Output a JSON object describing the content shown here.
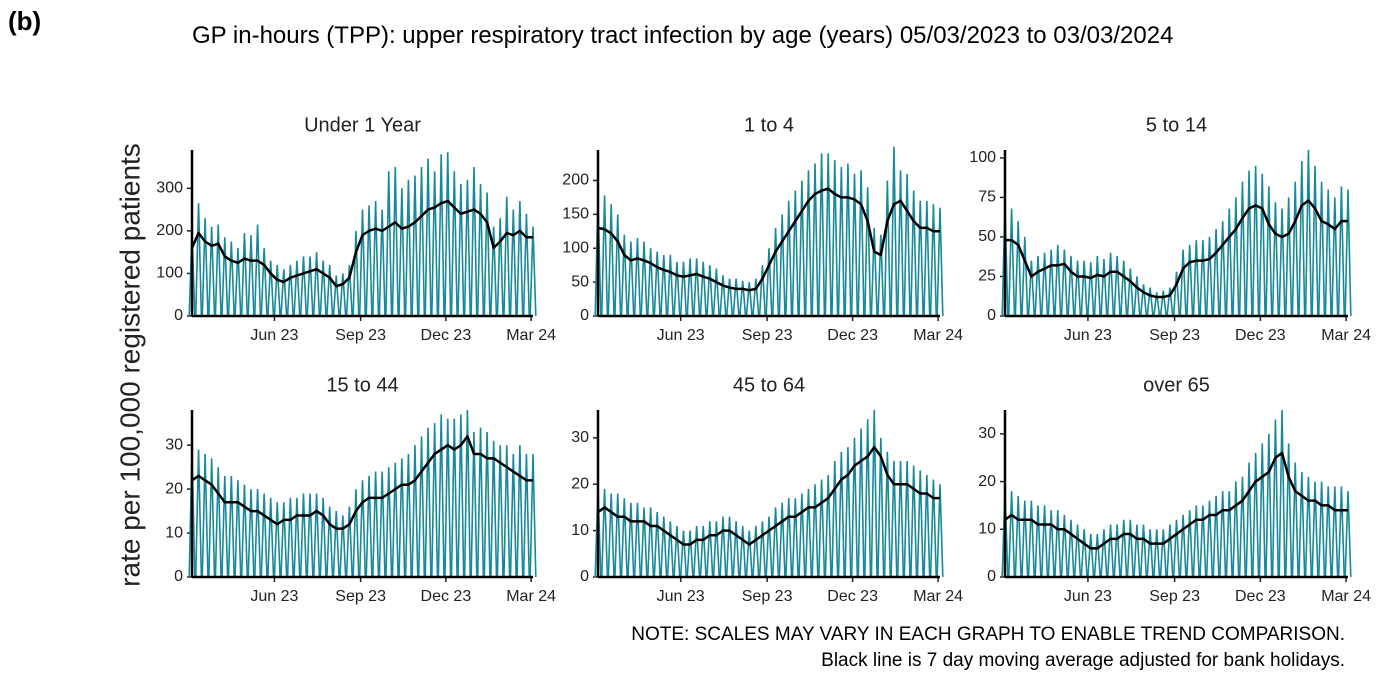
{
  "panel_label": "(b)",
  "notes": [
    "NOTE: SCALES MAY VARY IN EACH GRAPH TO ENABLE TREND COMPARISON.",
    "Black line is 7 day moving average adjusted for bank holidays."
  ],
  "chart_data": {
    "type": "line",
    "title": "GP in-hours (TPP): upper respiratory tract infection by age (years) 05/03/2023 to 03/03/2024",
    "ylabel": "rate per 100,000 registered patients",
    "xlim": [
      "2023-03-05",
      "2024-03-03"
    ],
    "xticks": [
      {
        "value": "2023-06-01",
        "label": "Jun 23"
      },
      {
        "value": "2023-09-01",
        "label": "Sep 23"
      },
      {
        "value": "2023-12-01",
        "label": "Dec 23"
      },
      {
        "value": "2024-03-01",
        "label": "Mar 24"
      }
    ],
    "x": [
      "2023-03-05",
      "2023-03-12",
      "2023-03-19",
      "2023-03-26",
      "2023-04-02",
      "2023-04-09",
      "2023-04-16",
      "2023-04-23",
      "2023-04-30",
      "2023-05-07",
      "2023-05-14",
      "2023-05-21",
      "2023-05-28",
      "2023-06-04",
      "2023-06-11",
      "2023-06-18",
      "2023-06-25",
      "2023-07-02",
      "2023-07-09",
      "2023-07-16",
      "2023-07-23",
      "2023-07-30",
      "2023-08-06",
      "2023-08-13",
      "2023-08-20",
      "2023-08-27",
      "2023-09-03",
      "2023-09-10",
      "2023-09-17",
      "2023-09-24",
      "2023-10-01",
      "2023-10-08",
      "2023-10-15",
      "2023-10-22",
      "2023-10-29",
      "2023-11-05",
      "2023-11-12",
      "2023-11-19",
      "2023-11-26",
      "2023-12-03",
      "2023-12-10",
      "2023-12-17",
      "2023-12-24",
      "2023-12-31",
      "2024-01-07",
      "2024-01-14",
      "2024-01-21",
      "2024-01-28",
      "2024-02-04",
      "2024-02-11",
      "2024-02-18",
      "2024-02-25",
      "2024-03-03"
    ],
    "panels": [
      {
        "title": "Under 1 Year",
        "ylim": [
          0,
          390
        ],
        "yticks": [
          0,
          100,
          200,
          300
        ],
        "series": [
          {
            "color": "#17899a",
            "values": [
              200,
              265,
              230,
              210,
              215,
              185,
              175,
              160,
              195,
              190,
              215,
              160,
              130,
              120,
              110,
              120,
              130,
              140,
              140,
              150,
              130,
              120,
              95,
              100,
              120,
              200,
              250,
              260,
              270,
              250,
              340,
              350,
              300,
              320,
              330,
              350,
              370,
              340,
              380,
              385,
              340,
              310,
              320,
              350,
              310,
              290,
              210,
              230,
              280,
              250,
              270,
              240,
              210
            ]
          },
          {
            "color": "#000000",
            "values": [
              160,
              195,
              175,
              165,
              170,
              140,
              130,
              125,
              135,
              130,
              130,
              120,
              100,
              85,
              80,
              90,
              95,
              100,
              105,
              110,
              100,
              90,
              70,
              75,
              90,
              150,
              190,
              200,
              205,
              200,
              210,
              220,
              205,
              210,
              220,
              235,
              250,
              255,
              265,
              270,
              255,
              240,
              245,
              250,
              240,
              220,
              160,
              175,
              195,
              190,
              200,
              185,
              185
            ]
          }
        ]
      },
      {
        "title": "1 to 4",
        "ylim": [
          0,
          245
        ],
        "yticks": [
          0,
          50,
          100,
          150,
          200
        ],
        "series": [
          {
            "color": "#17899a",
            "values": [
              175,
              178,
              165,
              150,
              120,
              110,
              115,
              110,
              100,
              95,
              90,
              90,
              80,
              80,
              85,
              85,
              80,
              75,
              70,
              60,
              55,
              55,
              52,
              50,
              55,
              75,
              100,
              130,
              150,
              170,
              185,
              200,
              215,
              225,
              240,
              240,
              230,
              220,
              225,
              210,
              215,
              190,
              130,
              120,
              200,
              250,
              215,
              210,
              185,
              170,
              170,
              165,
              160
            ]
          },
          {
            "color": "#000000",
            "values": [
              130,
              128,
              122,
              110,
              90,
              82,
              85,
              82,
              78,
              72,
              68,
              65,
              60,
              58,
              60,
              62,
              58,
              55,
              50,
              45,
              42,
              40,
              40,
              38,
              40,
              55,
              75,
              95,
              110,
              125,
              140,
              155,
              170,
              180,
              185,
              188,
              180,
              175,
              175,
              172,
              165,
              140,
              95,
              90,
              140,
              165,
              170,
              155,
              140,
              130,
              130,
              125,
              125
            ]
          }
        ]
      },
      {
        "title": "5 to 14",
        "ylim": [
          0,
          105
        ],
        "yticks": [
          0,
          25,
          50,
          75,
          100
        ],
        "series": [
          {
            "color": "#17899a",
            "values": [
              70,
              68,
              60,
              50,
              35,
              38,
              40,
              42,
              45,
              42,
              38,
              35,
              35,
              34,
              38,
              36,
              40,
              38,
              35,
              30,
              25,
              20,
              18,
              15,
              16,
              18,
              28,
              42,
              45,
              48,
              48,
              50,
              55,
              60,
              68,
              75,
              85,
              92,
              95,
              90,
              82,
              72,
              68,
              75,
              85,
              98,
              105,
              95,
              85,
              80,
              75,
              82,
              80
            ]
          },
          {
            "color": "#000000",
            "values": [
              48,
              48,
              45,
              35,
              25,
              28,
              30,
              32,
              32,
              33,
              28,
              25,
              25,
              24,
              26,
              25,
              28,
              28,
              25,
              22,
              18,
              15,
              13,
              12,
              12,
              13,
              20,
              30,
              34,
              35,
              35,
              36,
              40,
              45,
              50,
              55,
              62,
              68,
              70,
              68,
              58,
              52,
              50,
              52,
              60,
              70,
              73,
              68,
              60,
              58,
              55,
              60,
              60
            ]
          }
        ]
      },
      {
        "title": "15 to 44",
        "ylim": [
          0,
          38
        ],
        "yticks": [
          0,
          10,
          20,
          30
        ],
        "series": [
          {
            "color": "#17899a",
            "values": [
              29,
              29,
              28,
              27,
              25,
              23,
              23,
              22,
              21,
              20,
              20,
              19,
              18,
              17,
              17,
              18,
              18,
              19,
              19,
              19,
              18,
              16,
              15,
              14,
              16,
              20,
              22,
              23,
              24,
              24,
              25,
              26,
              27,
              28,
              30,
              32,
              34,
              35,
              37,
              36,
              36,
              37,
              38,
              33,
              34,
              33,
              31,
              30,
              30,
              28,
              30,
              28,
              28
            ]
          },
          {
            "color": "#000000",
            "values": [
              22,
              23,
              22,
              21,
              19,
              17,
              17,
              17,
              16,
              15,
              15,
              14,
              13,
              12,
              13,
              13,
              14,
              14,
              14,
              15,
              14,
              12,
              11,
              11,
              12,
              15,
              17,
              18,
              18,
              18,
              19,
              20,
              21,
              21,
              22,
              24,
              26,
              28,
              29,
              30,
              29,
              30,
              32,
              28,
              28,
              27,
              27,
              26,
              25,
              24,
              23,
              22,
              22
            ]
          }
        ]
      },
      {
        "title": "45 to 64",
        "ylim": [
          0,
          36
        ],
        "yticks": [
          0,
          10,
          20,
          30
        ],
        "series": [
          {
            "color": "#17899a",
            "values": [
              19,
              19,
              18,
              18,
              17,
              16,
              16,
              15,
              15,
              14,
              13,
              12,
              11,
              10,
              10,
              11,
              11,
              12,
              12,
              13,
              13,
              12,
              11,
              10,
              11,
              12,
              13,
              15,
              16,
              17,
              17,
              18,
              19,
              20,
              21,
              22,
              25,
              27,
              28,
              30,
              32,
              34,
              36,
              30,
              27,
              25,
              25,
              25,
              24,
              23,
              22,
              21,
              20
            ]
          },
          {
            "color": "#000000",
            "values": [
              14,
              15,
              14,
              13,
              13,
              12,
              12,
              12,
              11,
              11,
              10,
              9,
              8,
              7,
              7,
              8,
              8,
              9,
              9,
              10,
              10,
              9,
              8,
              7,
              8,
              9,
              10,
              11,
              12,
              13,
              13,
              14,
              15,
              15,
              16,
              17,
              19,
              21,
              22,
              24,
              25,
              26,
              28,
              26,
              22,
              20,
              20,
              20,
              19,
              18,
              18,
              17,
              17
            ]
          }
        ]
      },
      {
        "title": "over 65",
        "ylim": [
          0,
          35
        ],
        "yticks": [
          0,
          10,
          20,
          30
        ],
        "series": [
          {
            "color": "#17899a",
            "values": [
              18,
              18,
              17,
              16,
              16,
              15,
              15,
              14,
              14,
              13,
              12,
              11,
              10,
              9,
              9,
              10,
              11,
              11,
              12,
              12,
              11,
              11,
              10,
              10,
              10,
              11,
              12,
              13,
              14,
              15,
              15,
              16,
              17,
              18,
              18,
              20,
              21,
              24,
              26,
              28,
              30,
              33,
              35,
              28,
              24,
              22,
              21,
              20,
              20,
              19,
              19,
              19,
              18
            ]
          },
          {
            "color": "#000000",
            "values": [
              12,
              13,
              12,
              12,
              12,
              11,
              11,
              11,
              10,
              10,
              9,
              8,
              7,
              6,
              6,
              7,
              8,
              8,
              9,
              9,
              8,
              8,
              7,
              7,
              7,
              8,
              9,
              10,
              11,
              12,
              12,
              13,
              13,
              14,
              14,
              15,
              16,
              18,
              20,
              21,
              22,
              25,
              26,
              21,
              18,
              17,
              16,
              16,
              15,
              15,
              14,
              14,
              14
            ]
          }
        ]
      }
    ]
  }
}
